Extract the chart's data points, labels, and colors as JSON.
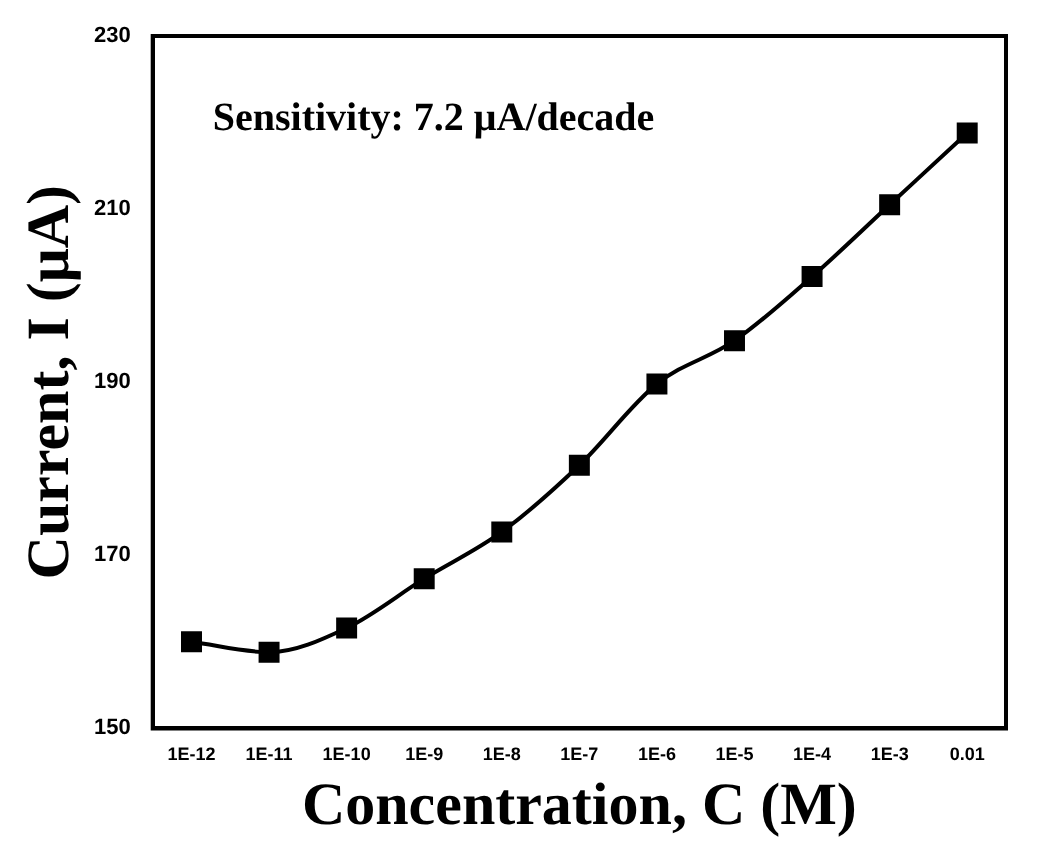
{
  "chart_data": {
    "type": "line",
    "xlabel": "Concentration, C (M)",
    "ylabel": "Current, I (μA)",
    "categories": [
      "1E-12",
      "1E-11",
      "1E-10",
      "1E-9",
      "1E-8",
      "1E-7",
      "1E-6",
      "1E-5",
      "1E-4",
      "1E-3",
      "0.01"
    ],
    "series": [
      {
        "color": "#000000",
        "values": [
          160.0,
          158.8,
          161.6,
          167.3,
          172.7,
          180.4,
          189.8,
          194.8,
          202.2,
          210.5,
          218.8
        ]
      }
    ],
    "ylim": [
      150,
      230
    ],
    "yticks": [
      150,
      170,
      190,
      210,
      230
    ],
    "annotations": [
      "Sensitivity: 7.2 μA/decade"
    ],
    "marker": "square",
    "line_style": "solid",
    "grid": false,
    "legend": false
  }
}
